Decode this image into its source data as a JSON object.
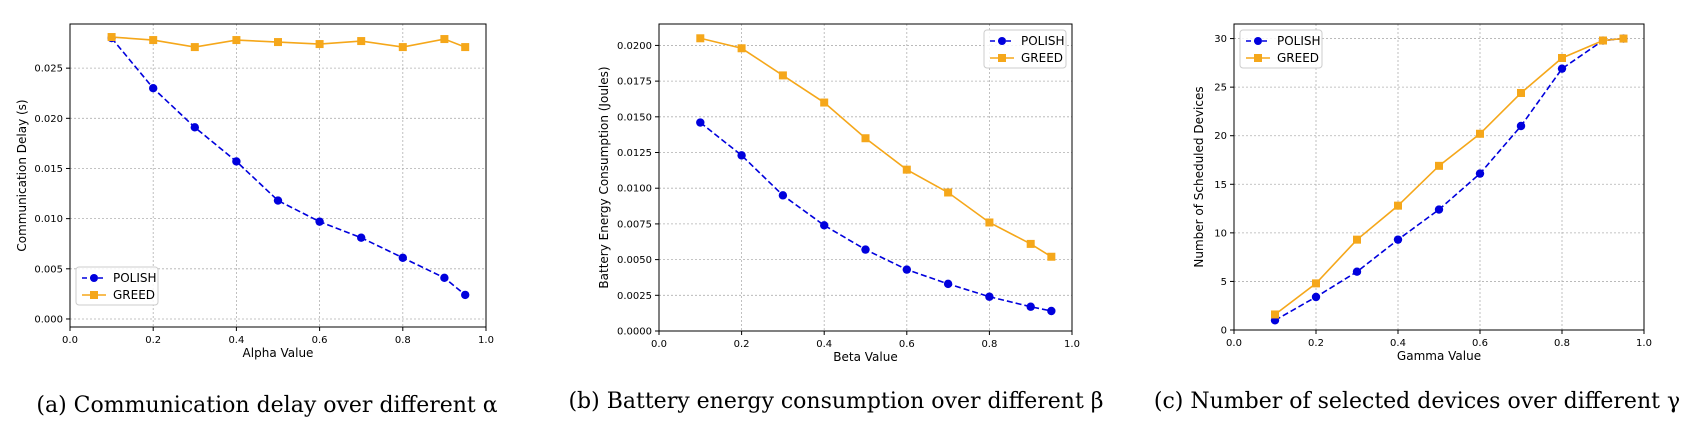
{
  "chart_data": [
    {
      "type": "line",
      "caption": "(a) Communication delay over different α",
      "xlabel": "Alpha Value",
      "ylabel": "Communication Delay (s)",
      "xlim": [
        0.0,
        1.0
      ],
      "ylim": [
        -0.0008,
        0.0294
      ],
      "xticks": [
        0.0,
        0.2,
        0.4,
        0.6,
        0.8,
        1.0
      ],
      "xtick_labels": [
        "0.0",
        "0.2",
        "0.4",
        "0.6",
        "0.8",
        "1.0"
      ],
      "yticks": [
        0.0,
        0.005,
        0.01,
        0.015,
        0.02,
        0.025
      ],
      "ytick_labels": [
        "0.000",
        "0.005",
        "0.010",
        "0.015",
        "0.020",
        "0.025"
      ],
      "grid": true,
      "legend_position": "lower-left",
      "x": [
        0.1,
        0.2,
        0.3,
        0.4,
        0.5,
        0.6,
        0.7,
        0.8,
        0.9,
        0.95
      ],
      "series": [
        {
          "name": "POLISH",
          "color": "#0000dd",
          "marker": "circle",
          "linestyle": "dashed",
          "values": [
            0.028,
            0.023,
            0.0191,
            0.0157,
            0.0118,
            0.0097,
            0.0081,
            0.0061,
            0.0041,
            0.0024
          ]
        },
        {
          "name": "GREED",
          "color": "#f5a71a",
          "marker": "square",
          "linestyle": "solid",
          "values": [
            0.0281,
            0.0278,
            0.0271,
            0.0278,
            0.0276,
            0.0274,
            0.0277,
            0.0271,
            0.0279,
            0.0271
          ]
        }
      ]
    },
    {
      "type": "line",
      "caption": "(b) Battery energy consumption over different β",
      "xlabel": "Beta Value",
      "ylabel": "Battery Energy Consumption (Joules)",
      "xlim": [
        0.0,
        1.0
      ],
      "ylim": [
        0.0,
        0.0215
      ],
      "xticks": [
        0.0,
        0.2,
        0.4,
        0.6,
        0.8,
        1.0
      ],
      "xtick_labels": [
        "0.0",
        "0.2",
        "0.4",
        "0.6",
        "0.8",
        "1.0"
      ],
      "yticks": [
        0.0,
        0.0025,
        0.005,
        0.0075,
        0.01,
        0.0125,
        0.015,
        0.0175,
        0.02
      ],
      "ytick_labels": [
        "0.0000",
        "0.0025",
        "0.0050",
        "0.0075",
        "0.0100",
        "0.0125",
        "0.0150",
        "0.0175",
        "0.0200"
      ],
      "grid": true,
      "legend_position": "upper-right",
      "x": [
        0.1,
        0.2,
        0.3,
        0.4,
        0.5,
        0.6,
        0.7,
        0.8,
        0.9,
        0.95
      ],
      "series": [
        {
          "name": "POLISH",
          "color": "#0000dd",
          "marker": "circle",
          "linestyle": "dashed",
          "values": [
            0.0146,
            0.0123,
            0.0095,
            0.0074,
            0.0057,
            0.0043,
            0.0033,
            0.0024,
            0.0017,
            0.0014
          ]
        },
        {
          "name": "GREED",
          "color": "#f5a71a",
          "marker": "square",
          "linestyle": "solid",
          "values": [
            0.0205,
            0.0198,
            0.0179,
            0.016,
            0.0135,
            0.0113,
            0.0097,
            0.0076,
            0.0061,
            0.0052
          ]
        }
      ]
    },
    {
      "type": "line",
      "caption": "(c) Number of selected devices over different γ",
      "xlabel": "Gamma Value",
      "ylabel": "Number of Scheduled Devices",
      "xlim": [
        0.0,
        1.0
      ],
      "ylim": [
        0,
        31.5
      ],
      "xticks": [
        0.0,
        0.2,
        0.4,
        0.6,
        0.8,
        1.0
      ],
      "xtick_labels": [
        "0.0",
        "0.2",
        "0.4",
        "0.6",
        "0.8",
        "1.0"
      ],
      "yticks": [
        0,
        5,
        10,
        15,
        20,
        25,
        30
      ],
      "ytick_labels": [
        "0",
        "5",
        "10",
        "15",
        "20",
        "25",
        "30"
      ],
      "grid": true,
      "legend_position": "upper-left",
      "x": [
        0.1,
        0.2,
        0.3,
        0.4,
        0.5,
        0.6,
        0.7,
        0.8,
        0.9,
        0.95
      ],
      "series": [
        {
          "name": "POLISH",
          "color": "#0000dd",
          "marker": "circle",
          "linestyle": "dashed",
          "values": [
            1.0,
            3.4,
            6.0,
            9.3,
            12.4,
            16.1,
            21.0,
            26.9,
            29.8,
            30.0
          ]
        },
        {
          "name": "GREED",
          "color": "#f5a71a",
          "marker": "square",
          "linestyle": "solid",
          "values": [
            1.6,
            4.8,
            9.3,
            12.8,
            16.9,
            20.2,
            24.4,
            28.0,
            29.8,
            30.0
          ]
        }
      ]
    }
  ]
}
